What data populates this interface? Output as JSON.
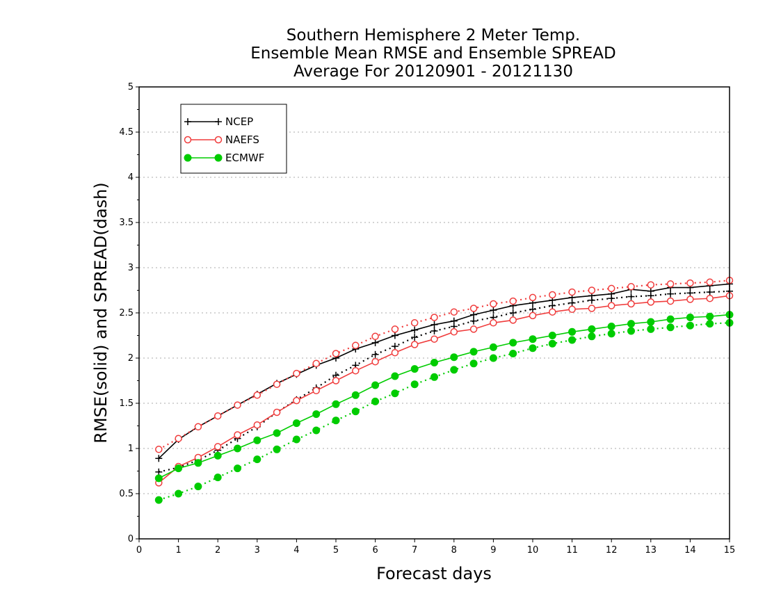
{
  "chart_data": {
    "type": "line",
    "title": [
      "Southern Hemisphere 2 Meter Temp.",
      "Ensemble Mean RMSE and Ensemble SPREAD",
      "Average For 20120901 - 20121130"
    ],
    "xlabel": "Forecast days",
    "ylabel": "RMSE(solid) and SPREAD(dash)",
    "xlim": [
      0,
      15
    ],
    "ylim": [
      0,
      5
    ],
    "xticks": [
      "0",
      "1",
      "2",
      "3",
      "4",
      "5",
      "6",
      "7",
      "8",
      "9",
      "10",
      "11",
      "12",
      "13",
      "14",
      "15"
    ],
    "yticks": [
      "0",
      "0.5",
      "1",
      "1.5",
      "2",
      "2.5",
      "3",
      "3.5",
      "4",
      "4.5",
      "5"
    ],
    "grid": true,
    "legend_position": "top-left",
    "x": [
      0.5,
      1,
      1.5,
      2,
      2.5,
      3,
      3.5,
      4,
      4.5,
      5,
      5.5,
      6,
      6.5,
      7,
      7.5,
      8,
      8.5,
      9,
      9.5,
      10,
      10.5,
      11,
      11.5,
      12,
      12.5,
      13,
      13.5,
      14,
      14.5,
      15
    ],
    "series": [
      {
        "name": "NCEP",
        "color": "#000000",
        "marker": "plus",
        "rmse": [
          0.89,
          1.1,
          1.24,
          1.36,
          1.48,
          1.6,
          1.72,
          1.82,
          1.92,
          2.0,
          2.1,
          2.17,
          2.25,
          2.31,
          2.37,
          2.41,
          2.48,
          2.53,
          2.58,
          2.61,
          2.64,
          2.67,
          2.69,
          2.71,
          2.76,
          2.74,
          2.78,
          2.78,
          2.8,
          2.82
        ],
        "spread": [
          0.74,
          0.79,
          0.87,
          0.98,
          1.11,
          1.24,
          1.4,
          1.54,
          1.67,
          1.81,
          1.92,
          2.04,
          2.13,
          2.23,
          2.3,
          2.35,
          2.41,
          2.45,
          2.5,
          2.54,
          2.58,
          2.61,
          2.64,
          2.66,
          2.68,
          2.69,
          2.71,
          2.72,
          2.73,
          2.74
        ]
      },
      {
        "name": "NAEFS",
        "color": "#f03c3c",
        "marker": "circle",
        "rmse": [
          0.62,
          0.8,
          0.9,
          1.02,
          1.15,
          1.26,
          1.4,
          1.53,
          1.64,
          1.75,
          1.86,
          1.96,
          2.06,
          2.15,
          2.21,
          2.29,
          2.32,
          2.39,
          2.42,
          2.47,
          2.51,
          2.54,
          2.55,
          2.58,
          2.6,
          2.62,
          2.63,
          2.65,
          2.66,
          2.69
        ],
        "spread": [
          0.99,
          1.11,
          1.24,
          1.36,
          1.48,
          1.59,
          1.71,
          1.83,
          1.94,
          2.05,
          2.14,
          2.24,
          2.32,
          2.39,
          2.45,
          2.51,
          2.55,
          2.6,
          2.63,
          2.67,
          2.7,
          2.73,
          2.75,
          2.77,
          2.79,
          2.81,
          2.82,
          2.83,
          2.84,
          2.86
        ]
      },
      {
        "name": "ECMWF",
        "color": "#00cc00",
        "marker": "filled-circle",
        "rmse": [
          0.67,
          0.78,
          0.84,
          0.92,
          1.0,
          1.09,
          1.17,
          1.28,
          1.38,
          1.49,
          1.59,
          1.7,
          1.8,
          1.88,
          1.95,
          2.01,
          2.07,
          2.12,
          2.17,
          2.21,
          2.25,
          2.29,
          2.32,
          2.35,
          2.38,
          2.4,
          2.43,
          2.45,
          2.46,
          2.48
        ],
        "spread": [
          0.43,
          0.5,
          0.58,
          0.68,
          0.78,
          0.88,
          0.99,
          1.1,
          1.2,
          1.31,
          1.41,
          1.52,
          1.61,
          1.71,
          1.79,
          1.87,
          1.94,
          2.0,
          2.05,
          2.11,
          2.16,
          2.2,
          2.24,
          2.27,
          2.3,
          2.32,
          2.34,
          2.36,
          2.38,
          2.39
        ]
      }
    ]
  }
}
